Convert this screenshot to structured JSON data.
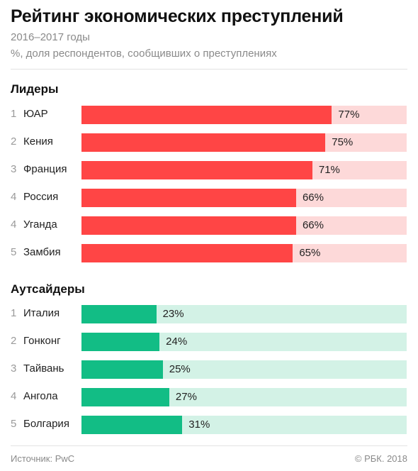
{
  "title": "Рейтинг экономических преступлений",
  "subtitle": "2016–2017 годы",
  "subtitle2": "%, доля респондентов, сообщивших о преступлениях",
  "footer": {
    "source": "Источник: PwC",
    "copyright": "© РБК. 2018"
  },
  "colors": {
    "leaders_fill": "#ff4545",
    "leaders_track": "#fdd9d9",
    "outsiders_fill": "#12bd85",
    "outsiders_track": "#d3f2e6"
  },
  "chart_data": [
    {
      "type": "bar",
      "title": "Лидеры",
      "ranks": [
        "1",
        "2",
        "3",
        "4",
        "4",
        "5"
      ],
      "categories": [
        "ЮАР",
        "Кения",
        "Франция",
        "Россия",
        "Уганда",
        "Замбия"
      ],
      "values": [
        77,
        75,
        71,
        66,
        66,
        65
      ],
      "value_labels": [
        "77%",
        "75%",
        "71%",
        "66%",
        "66%",
        "65%"
      ],
      "xlim": [
        0,
        100
      ]
    },
    {
      "type": "bar",
      "title": "Аутсайдеры",
      "ranks": [
        "1",
        "2",
        "3",
        "4",
        "5"
      ],
      "categories": [
        "Италия",
        "Гонконг",
        "Тайвань",
        "Ангола",
        "Болгария"
      ],
      "values": [
        23,
        24,
        25,
        27,
        31
      ],
      "value_labels": [
        "23%",
        "24%",
        "25%",
        "27%",
        "31%"
      ],
      "xlim": [
        0,
        100
      ]
    }
  ]
}
